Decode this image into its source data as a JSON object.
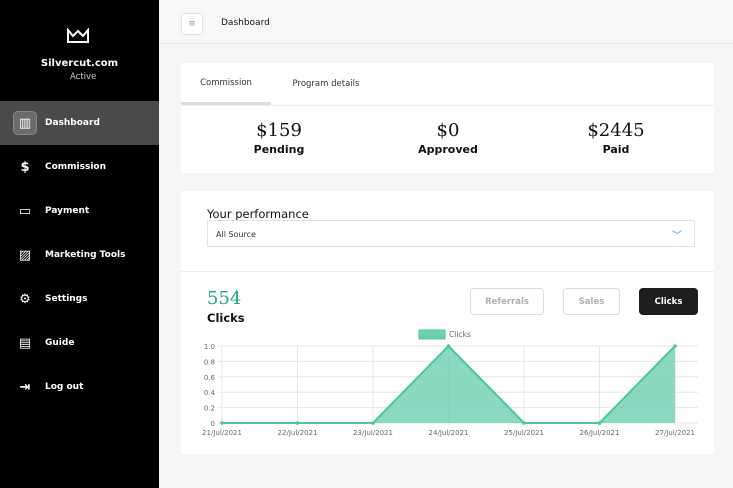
{
  "sidebar": {
    "brand": "Silvercut.com",
    "status": "Active",
    "items": [
      {
        "label": "Dashboard",
        "icon": "bar-chart-icon"
      },
      {
        "label": "Commission",
        "icon": "money-hand-icon"
      },
      {
        "label": "Payment",
        "icon": "credit-card-icon"
      },
      {
        "label": "Marketing Tools",
        "icon": "image-icon"
      },
      {
        "label": "Settings",
        "icon": "gear-icon"
      },
      {
        "label": "Guide",
        "icon": "book-icon"
      },
      {
        "label": "Log out",
        "icon": "logout-icon"
      }
    ]
  },
  "topbar": {
    "title": "Dashboard"
  },
  "tabs": [
    "Commission",
    "Program details"
  ],
  "stats": [
    {
      "value": "$159",
      "label": "Pending"
    },
    {
      "value": "$0",
      "label": "Approved"
    },
    {
      "value": "$2445",
      "label": "Paid"
    }
  ],
  "performance": {
    "title": "Your performance",
    "source": "All Source",
    "count": "554",
    "metric": "Clicks",
    "buttons": [
      "Referrals",
      "Sales",
      "Clicks"
    ]
  },
  "chart_data": {
    "type": "area",
    "legend": "Clicks",
    "categories": [
      "21/Jul/2021",
      "22/Jul/2021",
      "23/Jul/2021",
      "24/Jul/2021",
      "25/Jul/2021",
      "26/Jul/2021",
      "27/Jul/2021"
    ],
    "values": [
      0,
      0,
      0,
      1,
      0,
      0,
      1
    ],
    "yticks": [
      "0",
      "0.2",
      "0.4",
      "0.6",
      "0.8",
      "1.0"
    ],
    "ylim": [
      0,
      1
    ],
    "color": "#6fcfb3"
  }
}
